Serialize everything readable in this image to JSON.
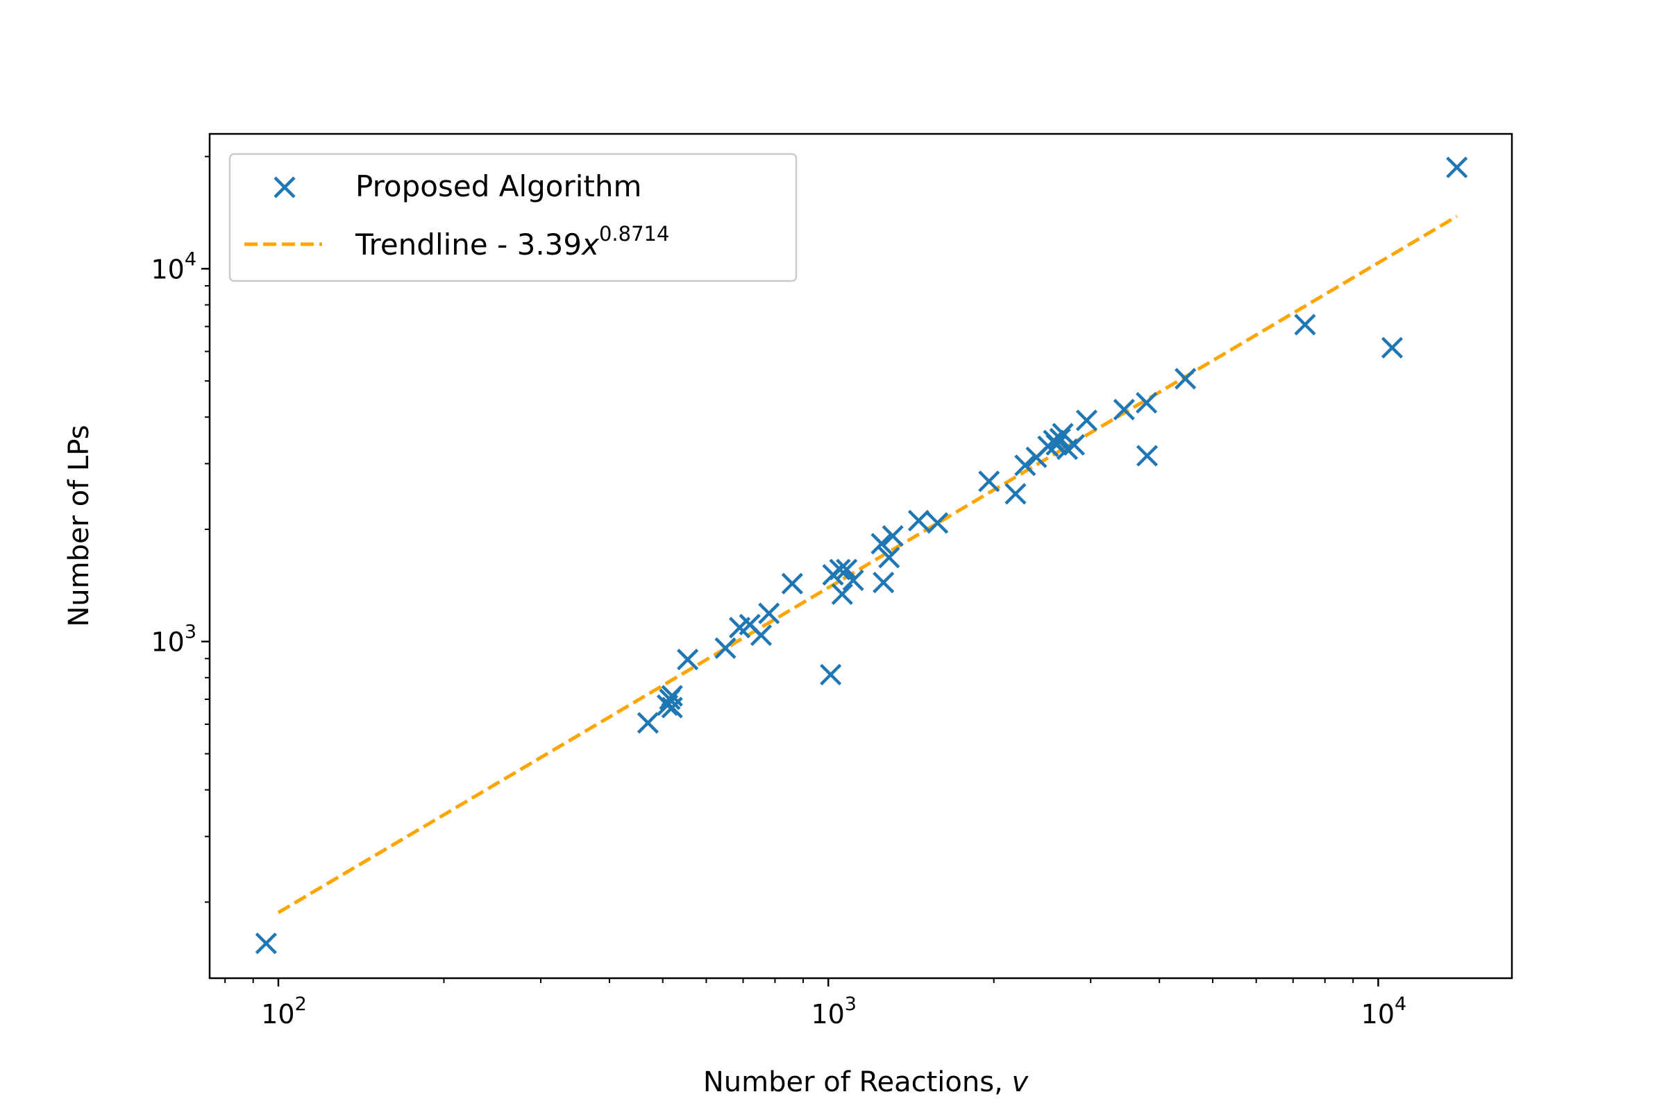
{
  "chart_data": {
    "type": "scatter",
    "title": "",
    "xlabel": "Number of Reactions, ",
    "xlabel_var": "v",
    "ylabel": "Number of LPs",
    "xscale": "log",
    "yscale": "log",
    "xlim": [
      75,
      17500
    ],
    "ylim": [
      125,
      23000
    ],
    "grid": false,
    "legend_position": "upper-left",
    "x_ticks": [
      {
        "value": 100,
        "base": "10",
        "exp": "2"
      },
      {
        "value": 1000,
        "base": "10",
        "exp": "3"
      },
      {
        "value": 10000,
        "base": "10",
        "exp": "4"
      }
    ],
    "y_ticks": [
      {
        "value": 1000,
        "base": "10",
        "exp": "3"
      },
      {
        "value": 10000,
        "base": "10",
        "exp": "4"
      }
    ],
    "series": [
      {
        "name": "Proposed Algorithm",
        "kind": "scatter",
        "marker": "x",
        "color": "#1f77b4",
        "points": [
          [
            95,
            155
          ],
          [
            470,
            605
          ],
          [
            510,
            675
          ],
          [
            515,
            700
          ],
          [
            520,
            715
          ],
          [
            520,
            665
          ],
          [
            555,
            895
          ],
          [
            650,
            960
          ],
          [
            690,
            1090
          ],
          [
            720,
            1110
          ],
          [
            755,
            1040
          ],
          [
            780,
            1190
          ],
          [
            860,
            1430
          ],
          [
            1010,
            815
          ],
          [
            1020,
            1510
          ],
          [
            1050,
            1560
          ],
          [
            1060,
            1340
          ],
          [
            1080,
            1560
          ],
          [
            1110,
            1460
          ],
          [
            1250,
            1830
          ],
          [
            1260,
            1440
          ],
          [
            1290,
            1680
          ],
          [
            1310,
            1920
          ],
          [
            1460,
            2110
          ],
          [
            1580,
            2080
          ],
          [
            1960,
            2690
          ],
          [
            2190,
            2490
          ],
          [
            2280,
            2970
          ],
          [
            2390,
            3120
          ],
          [
            2510,
            3340
          ],
          [
            2570,
            3460
          ],
          [
            2600,
            3370
          ],
          [
            2640,
            3500
          ],
          [
            2670,
            3610
          ],
          [
            2720,
            3280
          ],
          [
            2800,
            3370
          ],
          [
            2950,
            3920
          ],
          [
            3450,
            4190
          ],
          [
            3790,
            4370
          ],
          [
            3800,
            3150
          ],
          [
            4460,
            5070
          ],
          [
            7360,
            7080
          ],
          [
            10600,
            6140
          ],
          [
            13900,
            18700
          ]
        ]
      },
      {
        "name": "Trendline - 3.39",
        "name_var": "x",
        "name_exp": "0.8714",
        "kind": "line",
        "style": "dashed",
        "color": "#ffa500",
        "coefficient": 3.39,
        "exponent": 0.8714,
        "x_range": [
          100,
          13900
        ]
      }
    ]
  }
}
